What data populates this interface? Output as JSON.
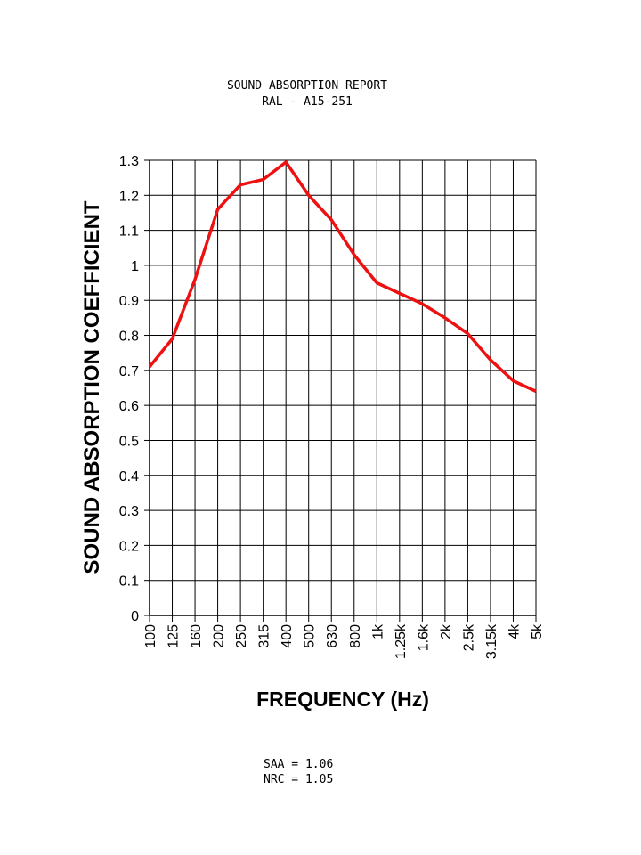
{
  "chart_data": {
    "type": "line",
    "title": "SOUND ABSORPTION REPORT",
    "subtitle": "RAL - A15-251",
    "xlabel": "FREQUENCY (Hz)",
    "ylabel": "SOUND ABSORPTION COEFFICIENT",
    "categories": [
      "100",
      "125",
      "160",
      "200",
      "250",
      "315",
      "400",
      "500",
      "630",
      "800",
      "1k",
      "1.25k",
      "1.6k",
      "2k",
      "2.5k",
      "3.15k",
      "4k",
      "5k"
    ],
    "values": [
      0.71,
      0.79,
      0.96,
      1.16,
      1.23,
      1.245,
      1.295,
      1.2,
      1.13,
      1.03,
      0.95,
      0.92,
      0.89,
      0.85,
      0.805,
      0.73,
      0.67,
      0.64
    ],
    "yticks": [
      "0",
      "0.1",
      "0.2",
      "0.3",
      "0.4",
      "0.5",
      "0.6",
      "0.7",
      "0.8",
      "0.9",
      "1",
      "1.1",
      "1.2",
      "1.3"
    ],
    "ylim": [
      0,
      1.3
    ],
    "grid": true,
    "line_color": "#ee1111"
  },
  "footer": {
    "saa": "SAA = 1.06",
    "nrc": "NRC = 1.05"
  }
}
